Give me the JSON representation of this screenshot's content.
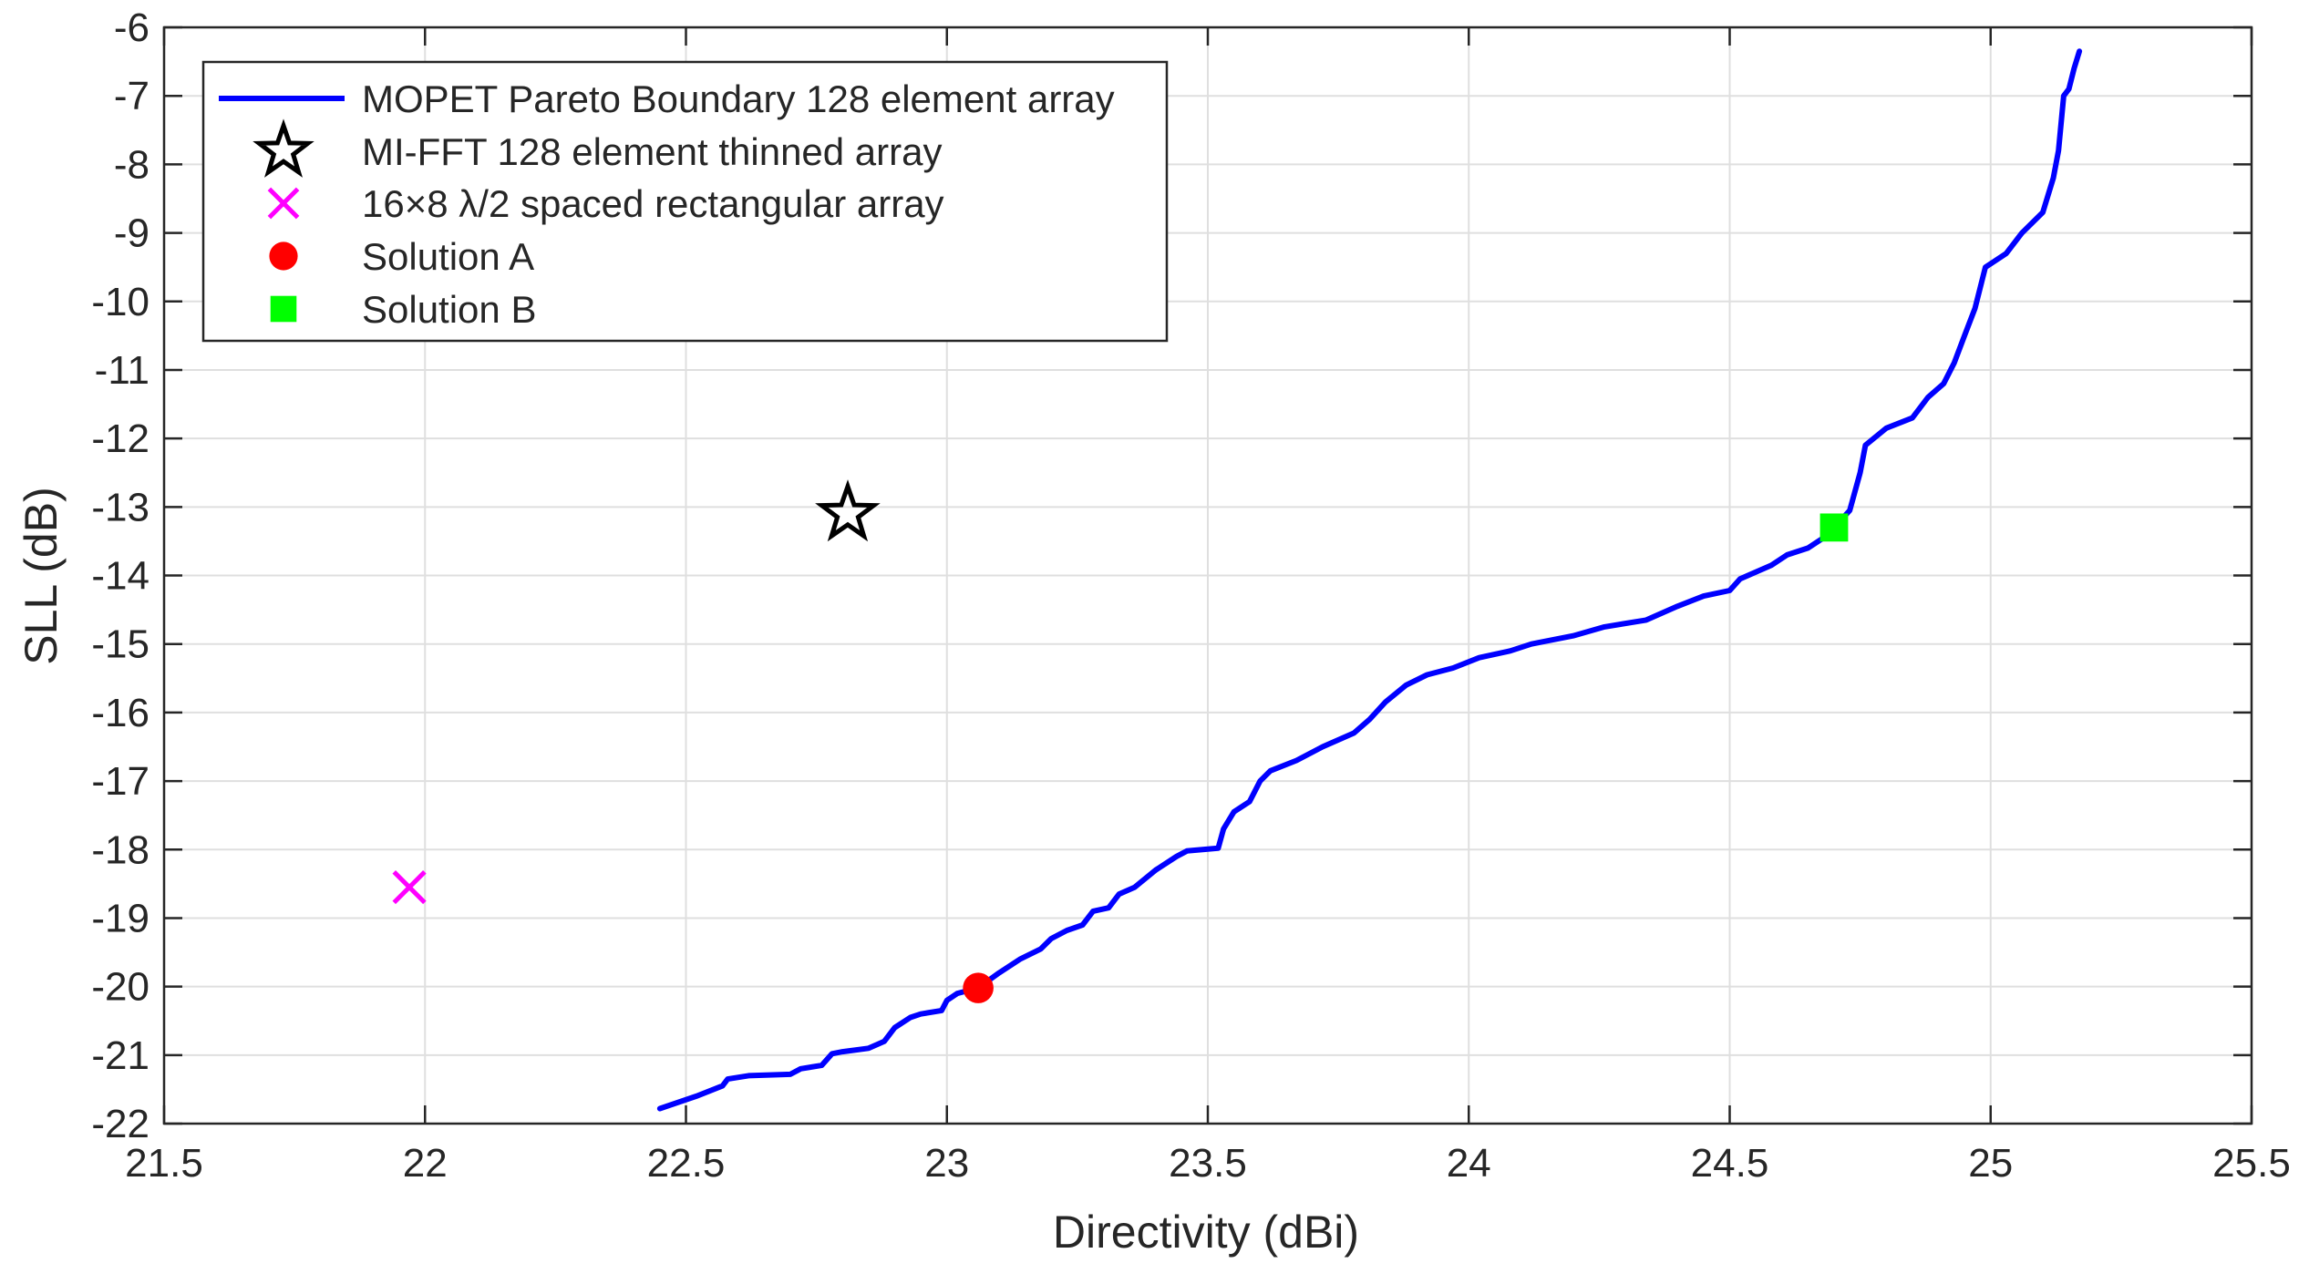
{
  "chart_data": {
    "type": "line",
    "xlabel": "Directivity (dBi)",
    "ylabel": "SLL (dB)",
    "xlim": [
      21.5,
      25.5
    ],
    "ylim": [
      -22,
      -6
    ],
    "xticks": [
      21.5,
      22,
      22.5,
      23,
      23.5,
      24,
      24.5,
      25,
      25.5
    ],
    "xtick_labels": [
      "21.5",
      "22",
      "22.5",
      "23",
      "23.5",
      "24",
      "24.5",
      "25",
      "25.5"
    ],
    "yticks": [
      -22,
      -21,
      -20,
      -19,
      -18,
      -17,
      -16,
      -15,
      -14,
      -13,
      -12,
      -11,
      -10,
      -9,
      -8,
      -7,
      -6
    ],
    "ytick_labels": [
      "-22",
      "-21",
      "-20",
      "-19",
      "-18",
      "-17",
      "-16",
      "-15",
      "-14",
      "-13",
      "-12",
      "-11",
      "-10",
      "-9",
      "-8",
      "-7",
      "-6"
    ],
    "grid": true,
    "legend_position": "top-left",
    "legend": [
      {
        "label": "MOPET Pareto Boundary 128 element array",
        "marker": "line",
        "color": "#0000ff"
      },
      {
        "label": "MI-FFT 128 element thinned array",
        "marker": "star",
        "color": "#000000"
      },
      {
        "label": "16×8 λ/2 spaced rectangular array",
        "marker": "x",
        "color": "#ff00ff"
      },
      {
        "label": "Solution A",
        "marker": "circle",
        "color": "#ff0000"
      },
      {
        "label": "Solution B",
        "marker": "square",
        "color": "#00ff00"
      }
    ],
    "series": [
      {
        "name": "MOPET Pareto Boundary 128 element array",
        "kind": "line",
        "color": "#0000ff",
        "points": [
          [
            22.45,
            -21.78
          ],
          [
            22.52,
            -21.6
          ],
          [
            22.57,
            -21.45
          ],
          [
            22.58,
            -21.35
          ],
          [
            22.62,
            -21.3
          ],
          [
            22.7,
            -21.28
          ],
          [
            22.72,
            -21.2
          ],
          [
            22.76,
            -21.15
          ],
          [
            22.78,
            -20.98
          ],
          [
            22.8,
            -20.95
          ],
          [
            22.85,
            -20.9
          ],
          [
            22.88,
            -20.8
          ],
          [
            22.9,
            -20.6
          ],
          [
            22.93,
            -20.45
          ],
          [
            22.95,
            -20.4
          ],
          [
            22.99,
            -20.35
          ],
          [
            23.0,
            -20.2
          ],
          [
            23.02,
            -20.1
          ],
          [
            23.06,
            -20.02
          ],
          [
            23.1,
            -19.8
          ],
          [
            23.14,
            -19.6
          ],
          [
            23.18,
            -19.45
          ],
          [
            23.2,
            -19.3
          ],
          [
            23.23,
            -19.18
          ],
          [
            23.26,
            -19.1
          ],
          [
            23.28,
            -18.9
          ],
          [
            23.31,
            -18.85
          ],
          [
            23.33,
            -18.65
          ],
          [
            23.36,
            -18.55
          ],
          [
            23.4,
            -18.3
          ],
          [
            23.44,
            -18.1
          ],
          [
            23.46,
            -18.02
          ],
          [
            23.52,
            -17.98
          ],
          [
            23.53,
            -17.7
          ],
          [
            23.55,
            -17.45
          ],
          [
            23.58,
            -17.3
          ],
          [
            23.6,
            -17.0
          ],
          [
            23.62,
            -16.85
          ],
          [
            23.67,
            -16.7
          ],
          [
            23.72,
            -16.5
          ],
          [
            23.78,
            -16.3
          ],
          [
            23.81,
            -16.1
          ],
          [
            23.84,
            -15.85
          ],
          [
            23.88,
            -15.6
          ],
          [
            23.92,
            -15.45
          ],
          [
            23.97,
            -15.35
          ],
          [
            24.02,
            -15.2
          ],
          [
            24.08,
            -15.1
          ],
          [
            24.12,
            -15.0
          ],
          [
            24.2,
            -14.88
          ],
          [
            24.26,
            -14.75
          ],
          [
            24.34,
            -14.65
          ],
          [
            24.4,
            -14.45
          ],
          [
            24.45,
            -14.3
          ],
          [
            24.5,
            -14.22
          ],
          [
            24.52,
            -14.05
          ],
          [
            24.58,
            -13.85
          ],
          [
            24.61,
            -13.7
          ],
          [
            24.65,
            -13.6
          ],
          [
            24.68,
            -13.45
          ],
          [
            24.7,
            -13.3
          ],
          [
            24.73,
            -13.05
          ],
          [
            24.75,
            -12.5
          ],
          [
            24.76,
            -12.1
          ],
          [
            24.8,
            -11.85
          ],
          [
            24.85,
            -11.7
          ],
          [
            24.88,
            -11.4
          ],
          [
            24.91,
            -11.2
          ],
          [
            24.93,
            -10.9
          ],
          [
            24.95,
            -10.5
          ],
          [
            24.97,
            -10.1
          ],
          [
            24.99,
            -9.5
          ],
          [
            25.03,
            -9.3
          ],
          [
            25.06,
            -9.0
          ],
          [
            25.1,
            -8.7
          ],
          [
            25.12,
            -8.2
          ],
          [
            25.13,
            -7.8
          ],
          [
            25.14,
            -7.0
          ],
          [
            25.15,
            -6.9
          ],
          [
            25.16,
            -6.6
          ],
          [
            25.17,
            -6.35
          ]
        ]
      },
      {
        "name": "MI-FFT 128 element thinned array",
        "kind": "marker",
        "marker": "star",
        "color": "#000000",
        "points": [
          [
            22.81,
            -13.1
          ]
        ]
      },
      {
        "name": "16×8 λ/2 spaced rectangular array",
        "kind": "marker",
        "marker": "x",
        "color": "#ff00ff",
        "points": [
          [
            21.97,
            -18.55
          ]
        ]
      },
      {
        "name": "Solution A",
        "kind": "marker",
        "marker": "circle",
        "color": "#ff0000",
        "points": [
          [
            23.06,
            -20.02
          ]
        ]
      },
      {
        "name": "Solution B",
        "kind": "marker",
        "marker": "square",
        "color": "#00ff00",
        "points": [
          [
            24.7,
            -13.3
          ]
        ]
      }
    ]
  }
}
